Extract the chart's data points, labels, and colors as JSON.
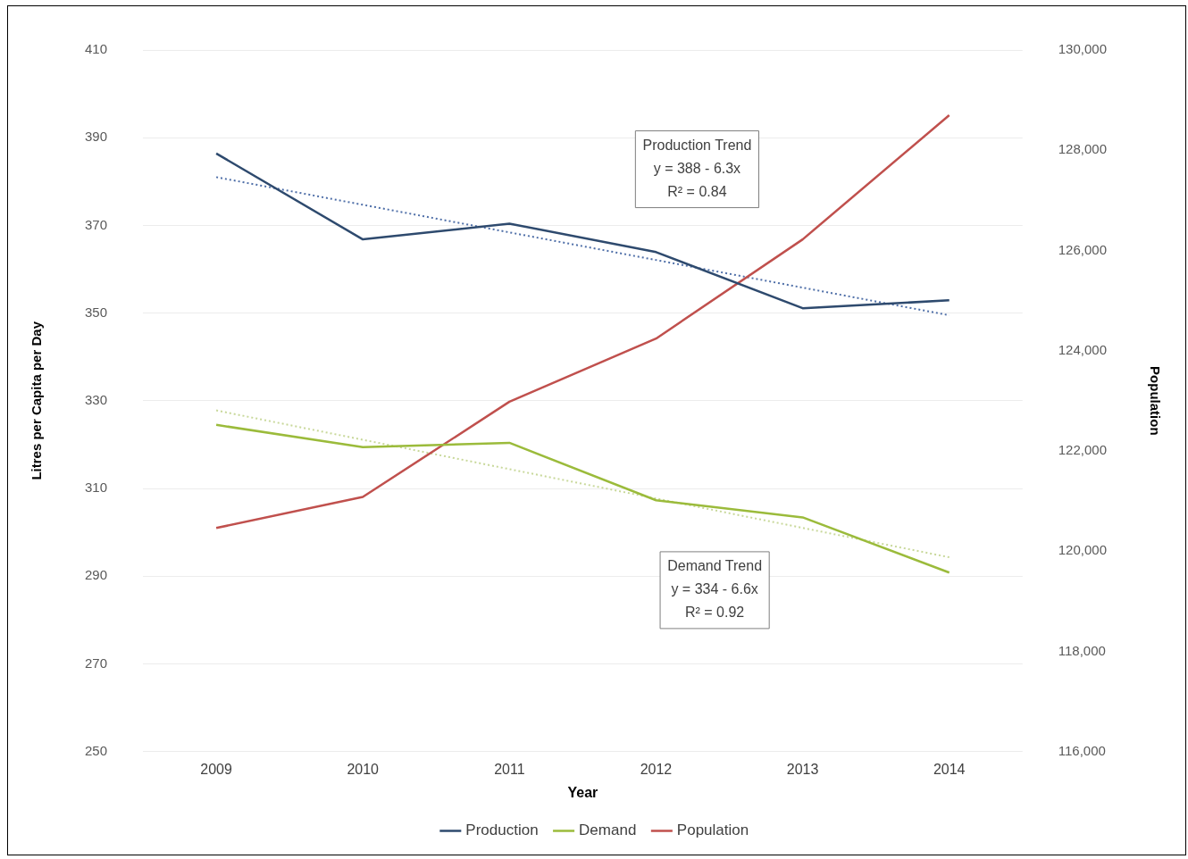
{
  "chart_data": {
    "type": "line",
    "xlabel": "Year",
    "ylabel": "Litres per Capita per Day",
    "y2label": "Population",
    "categories": [
      "2009",
      "2010",
      "2011",
      "2012",
      "2013",
      "2014"
    ],
    "series": [
      {
        "name": "Production",
        "color": "#2e4a6e",
        "values": [
          386.4,
          366.8,
          370.4,
          363.9,
          351.1,
          352.9
        ]
      },
      {
        "name": "Demand",
        "color": "#9bbb3b",
        "values": [
          324.5,
          319.4,
          320.4,
          307.3,
          303.4,
          290.8
        ]
      },
      {
        "name": "Population",
        "color": "#c0504d",
        "axis": "y2",
        "values": [
          120460,
          121080,
          122980,
          124240,
          126220,
          128700
        ]
      },
      {
        "color": "#4f6fa8",
        "line_style": "dotted",
        "values": [
          381.0,
          null,
          null,
          null,
          null,
          349.5
        ]
      },
      {
        "color": "#c8d89a",
        "line_style": "dotted",
        "values": [
          327.8,
          null,
          null,
          null,
          null,
          294.3
        ]
      }
    ],
    "ylim": [
      250,
      410
    ],
    "yticks": [
      250,
      270,
      290,
      310,
      330,
      350,
      370,
      390,
      410
    ],
    "y2lim": [
      116000,
      130000
    ],
    "y2ticks": [
      {
        "value": 116000,
        "label": "116,000"
      },
      {
        "value": 118000,
        "label": "118,000"
      },
      {
        "value": 120000,
        "label": "120,000"
      },
      {
        "value": 122000,
        "label": "122,000"
      },
      {
        "value": 124000,
        "label": "124,000"
      },
      {
        "value": 126000,
        "label": "126,000"
      },
      {
        "value": 128000,
        "label": "128,000"
      },
      {
        "value": 130000,
        "label": "130,000"
      }
    ],
    "grid": "y",
    "legend": "bottom",
    "marker": "none",
    "line_style": "solid",
    "annotations": [
      "Production Trend\ny = 388 - 6.3x\nR² = 0.84",
      "Demand Trend\ny = 334 - 6.6x\nR² = 0.92"
    ]
  }
}
